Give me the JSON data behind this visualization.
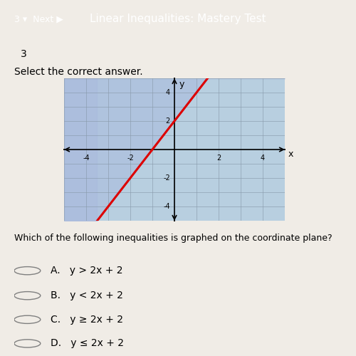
{
  "slope": 2,
  "intercept": 2,
  "xlim": [
    -5,
    5
  ],
  "ylim": [
    -5,
    5
  ],
  "xticks": [
    -4,
    -2,
    2,
    4
  ],
  "yticks": [
    -4,
    -2,
    2,
    4
  ],
  "line_color": "#dd0000",
  "line_width": 2.2,
  "line_style": "-",
  "shade_color": "#aabbdd",
  "shade_alpha": 0.6,
  "grid_color": "#8899aa",
  "grid_alpha": 0.7,
  "plot_bg_color": "#b8cfe0",
  "page_bg_color": "#f0ece6",
  "header_bg_color": "#2c4a7c",
  "header_text": "Linear Inequalities: Mastery Test",
  "question_num": "3",
  "prompt": "Select the correct answer.",
  "question": "Which of the following inequalities is graphed on the coordinate plane?",
  "choices": [
    "A.   y > 2x + 2",
    "B.   y < 2x + 2",
    "C.   y ≥ 2x + 2",
    "D.   y ≤ 2x + 2"
  ],
  "figsize": [
    5.0,
    5.0
  ],
  "dpi": 100
}
